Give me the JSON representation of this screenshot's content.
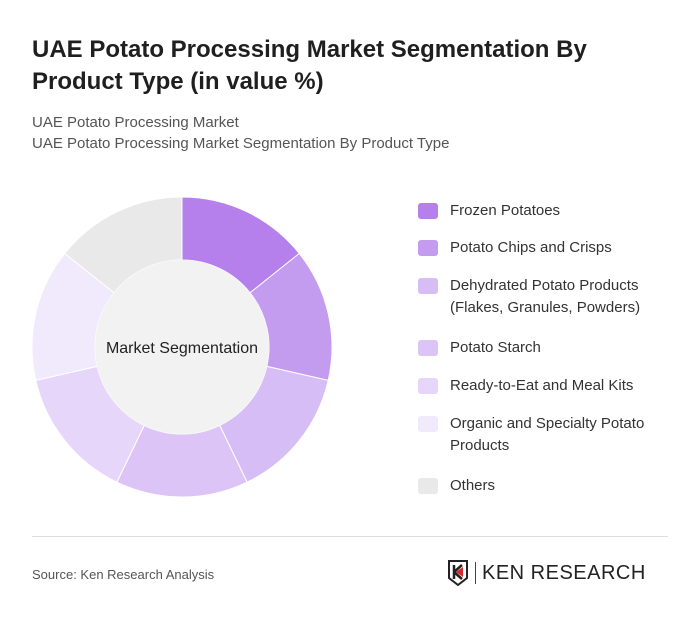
{
  "title": "UAE Potato Processing Market Segmentation By Product Type (in value %)",
  "subtitle1": "UAE Potato Processing Market",
  "subtitle2": "UAE Potato Processing Market Segmentation By Product Type",
  "chart_data": {
    "type": "pie",
    "donut": true,
    "center_label": "Market Segmentation",
    "legend_placement": "right",
    "categories": [
      "Frozen Potatoes",
      "Potato Chips and Crisps",
      "Dehydrated Potato Products (Flakes, Granules, Powders)",
      "Potato Starch",
      "Ready-to-Eat and Meal Kits",
      "Organic and Specialty Potato Products",
      "Others"
    ],
    "values": [
      14.3,
      14.3,
      14.3,
      14.3,
      14.3,
      14.3,
      14.3
    ],
    "colors": [
      "#b57fec",
      "#c39bef",
      "#d6bdf5",
      "#dcc5f6",
      "#e6d6f9",
      "#f1e9fc",
      "#e9e9e9"
    ]
  },
  "legend_lines": [
    [
      "Frozen Potatoes"
    ],
    [
      "Potato Chips and Crisps"
    ],
    [
      "Dehydrated Potato Products",
      "(Flakes, Granules, Powders)"
    ],
    [
      "Potato Starch"
    ],
    [
      "Ready-to-Eat and Meal Kits"
    ],
    [
      "Organic and Specialty Potato",
      "Products"
    ],
    [
      "Others"
    ]
  ],
  "source": "Source: Ken Research Analysis",
  "logo_text": "KEN RESEARCH"
}
